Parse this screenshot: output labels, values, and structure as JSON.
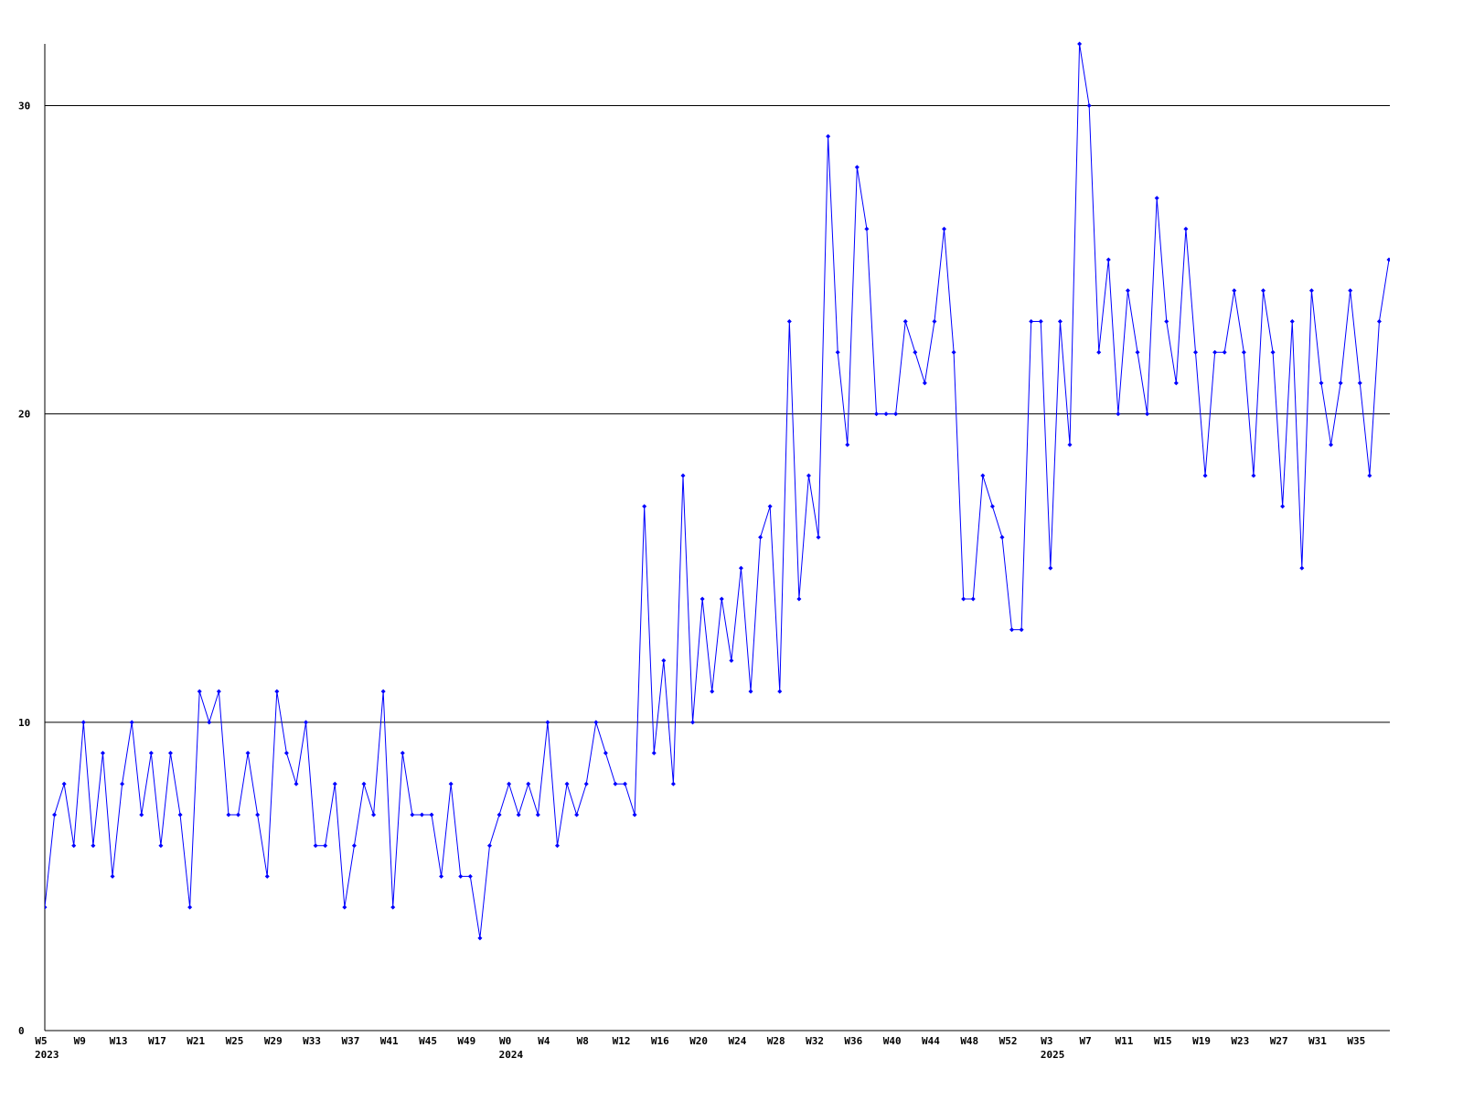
{
  "chart_data": {
    "type": "line",
    "color": "#0000ff",
    "grid": true,
    "ylim": [
      0,
      32
    ],
    "yticks": [
      0,
      10,
      20,
      30
    ],
    "categories": [
      "W5",
      null,
      null,
      null,
      "W9",
      null,
      null,
      null,
      "W13",
      null,
      null,
      null,
      "W17",
      null,
      null,
      null,
      "W21",
      null,
      null,
      null,
      "W25",
      null,
      null,
      null,
      "W29",
      null,
      null,
      null,
      "W33",
      null,
      null,
      null,
      "W37",
      null,
      null,
      null,
      "W41",
      null,
      null,
      null,
      "W45",
      null,
      null,
      null,
      "W49",
      null,
      null,
      null,
      "W0",
      null,
      null,
      null,
      "W4",
      null,
      null,
      null,
      "W8",
      null,
      null,
      null,
      "W12",
      null,
      null,
      null,
      "W16",
      null,
      null,
      null,
      "W20",
      null,
      null,
      null,
      "W24",
      null,
      null,
      null,
      "W28",
      null,
      null,
      null,
      "W32",
      null,
      null,
      null,
      "W36",
      null,
      null,
      null,
      "W40",
      null,
      null,
      null,
      "W44",
      null,
      null,
      null,
      "W48",
      null,
      null,
      null,
      "W52",
      null,
      null,
      null,
      "W3",
      null,
      null,
      null,
      "W7",
      null,
      null,
      null,
      "W11",
      null,
      null,
      null,
      "W15",
      null,
      null,
      null,
      "W19",
      null,
      null,
      null,
      "W23",
      null,
      null,
      null,
      "W27",
      null,
      null,
      null,
      "W31",
      null,
      null,
      null,
      "W35",
      null,
      null,
      null
    ],
    "category_years": [
      "2023",
      null,
      null,
      null,
      null,
      null,
      null,
      null,
      null,
      null,
      null,
      null,
      null,
      null,
      null,
      null,
      null,
      null,
      null,
      null,
      null,
      null,
      null,
      null,
      null,
      null,
      null,
      null,
      null,
      null,
      null,
      null,
      null,
      null,
      null,
      null,
      null,
      null,
      null,
      null,
      null,
      null,
      null,
      null,
      null,
      null,
      null,
      null,
      "2024",
      null,
      null,
      null,
      null,
      null,
      null,
      null,
      null,
      null,
      null,
      null,
      null,
      null,
      null,
      null,
      null,
      null,
      null,
      null,
      null,
      null,
      null,
      null,
      null,
      null,
      null,
      null,
      null,
      null,
      null,
      null,
      null,
      null,
      null,
      null,
      null,
      null,
      null,
      null,
      null,
      null,
      null,
      null,
      null,
      null,
      null,
      null,
      null,
      null,
      null,
      null,
      null,
      null,
      null,
      null,
      "2025",
      null,
      null,
      null,
      null,
      null,
      null,
      null,
      null,
      null,
      null,
      null,
      null,
      null,
      null,
      null,
      null,
      null,
      null,
      null,
      null,
      null,
      null,
      null,
      null,
      null,
      null,
      null,
      null,
      null,
      null,
      null,
      null,
      null,
      null,
      null
    ],
    "values": [
      4,
      7,
      8,
      6,
      10,
      6,
      9,
      5,
      8,
      10,
      7,
      9,
      6,
      9,
      7,
      4,
      11,
      10,
      11,
      7,
      7,
      9,
      7,
      5,
      11,
      9,
      8,
      10,
      6,
      6,
      8,
      4,
      6,
      8,
      7,
      11,
      4,
      9,
      7,
      7,
      7,
      5,
      8,
      5,
      5,
      3,
      6,
      7,
      8,
      7,
      8,
      7,
      10,
      6,
      8,
      7,
      8,
      10,
      9,
      8,
      8,
      7,
      17,
      9,
      12,
      8,
      18,
      10,
      14,
      11,
      14,
      12,
      15,
      11,
      16,
      17,
      11,
      23,
      14,
      18,
      16,
      29,
      22,
      19,
      28,
      26,
      20,
      20,
      20,
      23,
      22,
      21,
      23,
      26,
      22,
      14,
      14,
      18,
      17,
      16,
      13,
      13,
      23,
      23,
      15,
      23,
      19,
      32,
      30,
      22,
      25,
      20,
      24,
      22,
      20,
      27,
      23,
      21,
      26,
      22,
      18,
      22,
      22,
      24,
      22,
      18,
      24,
      22,
      17,
      23,
      15,
      24,
      21,
      19,
      21,
      24,
      21,
      18,
      23,
      25
    ]
  }
}
